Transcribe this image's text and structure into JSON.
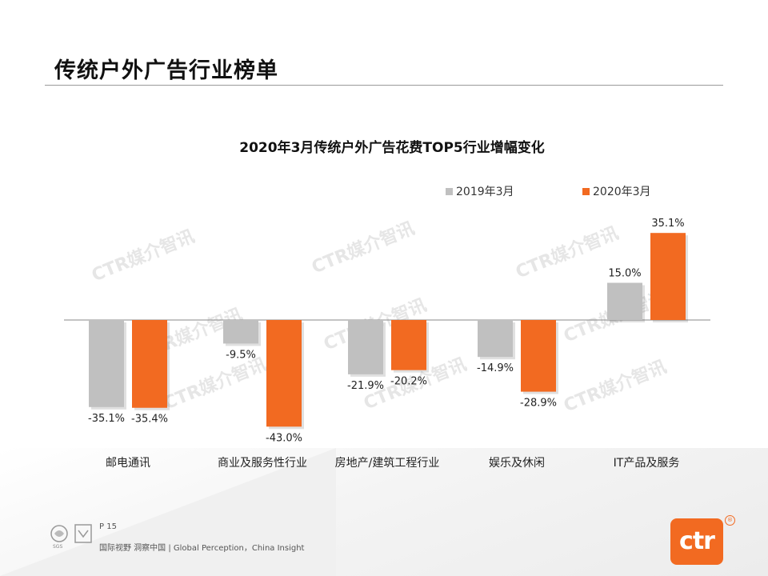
{
  "slide": {
    "title": "传统户外广告行业榜单",
    "page_label": "P 15",
    "tagline": "国际视野 洞察中国 | Global Perception，China Insight",
    "watermark": "CTR媒介智讯",
    "logo_text": "ctr",
    "logo_mark": "®",
    "cert_text": "SGS"
  },
  "colors": {
    "series_2019": "#c0c0c0",
    "series_2020": "#f26a21",
    "logo": "#f26a21"
  },
  "chart_data": {
    "type": "bar",
    "title": "2020年3月传统户外广告花费TOP5行业增幅变化",
    "categories": [
      "邮电通讯",
      "商业及服务性行业",
      "房地产/建筑工程行业",
      "娱乐及休闲",
      "IT产品及服务"
    ],
    "series": [
      {
        "name": "2019年3月",
        "values": [
          -35.1,
          -9.5,
          -21.9,
          -14.9,
          15.0
        ],
        "labels": [
          "-35.1%",
          "-9.5%",
          "-21.9%",
          "-14.9%",
          "15.0%"
        ]
      },
      {
        "name": "2020年3月",
        "values": [
          -35.4,
          -43.0,
          -20.2,
          -28.9,
          35.1
        ],
        "labels": [
          "-35.4%",
          "-43.0%",
          "-20.2%",
          "-28.9%",
          "35.1%"
        ]
      }
    ],
    "unit": "%",
    "ylim": [
      -43.0,
      35.1
    ],
    "grid": false,
    "legend": "top-right"
  }
}
